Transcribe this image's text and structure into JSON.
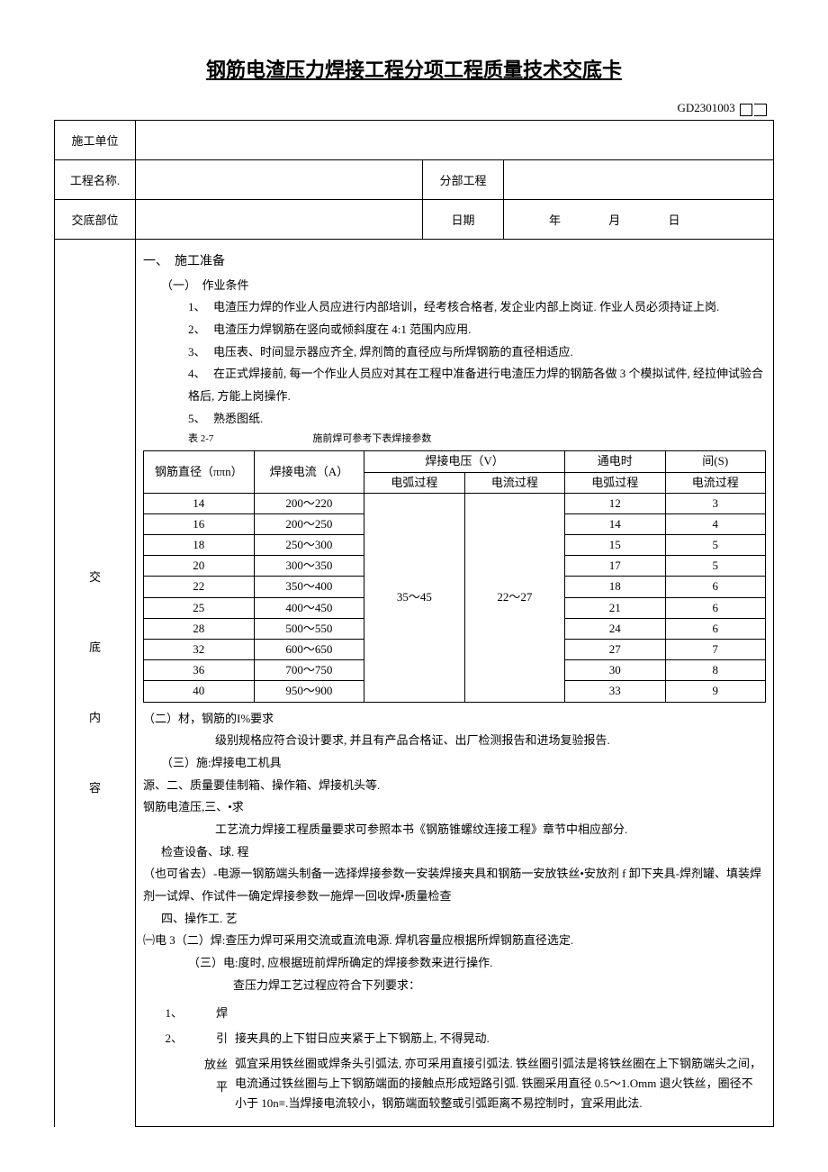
{
  "title": "钢筋电渣压力焊接工程分项工程质量技术交底卡",
  "code_prefix": "GD2301003",
  "header": {
    "row1_label": "施工单位",
    "row2_label": "工程名称.",
    "row2_label2": "分部工程",
    "row3_label": "交底部位",
    "row3_label2": "日期",
    "date_y": "年",
    "date_m": "月",
    "date_d": "日"
  },
  "side_labels": [
    "交",
    "底",
    "内",
    "容"
  ],
  "sec1": {
    "heading": "一、　施工准备",
    "sub": "（一）　作业条件",
    "items": [
      "电渣压力焊的作业人员应进行内部培训，经考核合格者, 发企业内部上岗证. 作业人员必须持证上岗.",
      "电渣压力焊钢筋在竖向或倾斜度在 4:1 范围内应用.",
      "电压表、时间显示器应齐全, 焊剂筒的直径应与所焊钢筋的直径相适应.",
      "在正式焊接前, 每一个作业人员应对其在工程中准备进行电渣压力焊的钢筋各做 3 个模拟试件, 经拉伸试验合格后, 方能上岗操作.",
      "熟悉图纸."
    ],
    "table_note": "表 2-7　　　　　　　　　　施前焊可参考下表焊接参数"
  },
  "param_table": {
    "head": {
      "c1": "钢筋直径（ππn）",
      "c2": "焊接电流（A）",
      "c3": "焊接电压（V）",
      "c4": "通电时",
      "c4b": "间(S)",
      "s1": "电弧过程",
      "s2": "电流过程",
      "s3": "电弧过程",
      "s4": "电流过程"
    },
    "voltage_arc": "35～45",
    "voltage_cur": "22～27",
    "rows": [
      {
        "d": "14",
        "a": "200～220",
        "t1": "12",
        "t2": "3"
      },
      {
        "d": "16",
        "a": "200～250",
        "t1": "14",
        "t2": "4"
      },
      {
        "d": "18",
        "a": "250～300",
        "t1": "15",
        "t2": "5"
      },
      {
        "d": "20",
        "a": "300～350",
        "t1": "17",
        "t2": "5"
      },
      {
        "d": "22",
        "a": "350～400",
        "t1": "18",
        "t2": "6"
      },
      {
        "d": "25",
        "a": "400～450",
        "t1": "21",
        "t2": "6"
      },
      {
        "d": "28",
        "a": "500～550",
        "t1": "24",
        "t2": "6"
      },
      {
        "d": "32",
        "a": "600～650",
        "t1": "27",
        "t2": "7"
      },
      {
        "d": "36",
        "a": "700～750",
        "t1": "30",
        "t2": "8"
      },
      {
        "d": "40",
        "a": "950～900",
        "t1": "33",
        "t2": "9"
      }
    ]
  },
  "prose": {
    "p1": "（二）材，钢筋的I%要求",
    "p2": "级别规格应符合设计要求, 并且有产品合格证、出厂检测报告和进场复验报告.",
    "p3": "（三）施:焊接电工机具",
    "p4": "源、二、质量要佳制箱、操作箱、焊接机头等.",
    "p5": "钢筋电渣压,三、•求",
    "p6": "工艺流力焊接工程质量要求可参照本书《钢筋锥螺纹连接工程》章节中相应部分.",
    "p7": "检查设备、球. 程",
    "p8": "（也可省去）-电源一钢筋端头制备一选择焊接参数一安装焊接夹具和钢筋一安放铁丝•安放剂 f 卸下夹具-焊剂罐、填装焊剂一试焊、作试件一确定焊接参数一施焊一回收焊•质量检查",
    "p9": "四、操作工. 艺",
    "p10": "㈠电 3（二）焊:查压力焊可采用交流或直流电源. 焊机容量应根据所焊钢筋直径选定.",
    "p11": "（三）电:度时, 应根据班前焊所确定的焊接参数来进行操作.",
    "p12": "查压力焊工艺过程应符合下列要求：",
    "i1_num": "1、",
    "i1_lbl": "焊",
    "i2_num": "2、",
    "i2_lbl": "引",
    "i2_txt": "接夹具的上下钳日应夹紧于上下钢筋上, 不得晃动.",
    "i3_lbl": "放丝平",
    "i3_txt": "弧宜采用铁丝圈或焊条头引弧法, 亦可采用直接引弧法. 铁丝圈引弧法是将铁丝圈在上下钢筋端头之间，电流通过铁丝圈与上下钢筋端面的接触点形成短路引弧. 铁圈采用直径 0.5～1.Omm 退火铁丝，圈径不小于 10n≡.当焊接电流较小，钢筋端面较整或引弧距离不易控制时，宜采用此法."
  }
}
